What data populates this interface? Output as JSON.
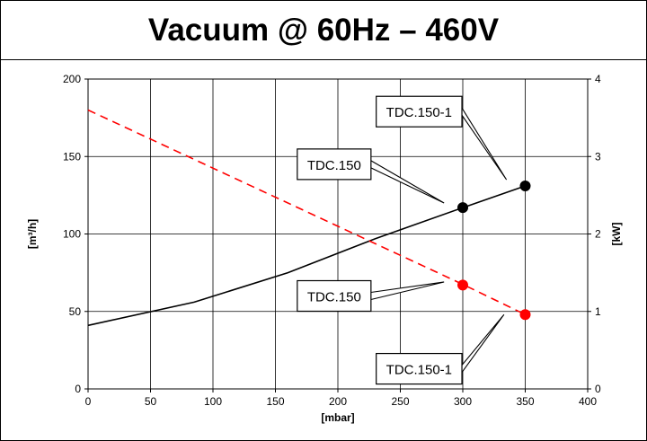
{
  "chart_data": {
    "type": "line",
    "title": "Vacuum @ 60Hz – 460V",
    "xlabel": "[mbar]",
    "ylabel_left": "[m³/h]",
    "ylabel_right": "[kW]",
    "xlim": [
      0,
      400
    ],
    "ylim_left": [
      0,
      200
    ],
    "ylim_right": [
      0,
      4
    ],
    "x_ticks": [
      "0",
      "50",
      "100",
      "150",
      "200",
      "250",
      "300",
      "350",
      "400"
    ],
    "y_left_ticks": [
      "0",
      "50",
      "100",
      "150",
      "200"
    ],
    "y_right_ticks": [
      "0",
      "1",
      "2",
      "3",
      "4"
    ],
    "grid": true,
    "series": [
      {
        "axis": "left",
        "color": "#000000",
        "style": "solid",
        "points": [
          [
            0,
            41
          ],
          [
            85,
            56
          ],
          [
            160,
            75
          ],
          [
            230,
            97
          ],
          [
            300,
            117
          ],
          [
            350,
            131
          ]
        ]
      },
      {
        "axis": "right",
        "color": "#ff0000",
        "style": "dashed",
        "points": [
          [
            0,
            3.6
          ],
          [
            300,
            1.35
          ],
          [
            350,
            0.96
          ]
        ]
      }
    ],
    "markers": [
      {
        "x": 300,
        "y": 117,
        "axis": "left",
        "color": "#000000"
      },
      {
        "x": 350,
        "y": 131,
        "axis": "left",
        "color": "#000000"
      },
      {
        "x": 300,
        "y": 67,
        "axis": "left",
        "color": "#ff0000"
      },
      {
        "x": 350,
        "y": 48,
        "axis": "left",
        "color": "#ff0000"
      }
    ],
    "callouts": [
      {
        "text": "TDC.150-1",
        "target_x": 335,
        "target_y": 135,
        "box_x": 265,
        "box_y": 179
      },
      {
        "text": "TDC.150",
        "target_x": 285,
        "target_y": 120,
        "box_x": 197,
        "box_y": 145
      },
      {
        "text": "TDC.150",
        "target_x": 285,
        "target_y": 69,
        "box_x": 197,
        "box_y": 60
      },
      {
        "text": "TDC.150-1",
        "target_x": 333,
        "target_y": 48,
        "box_x": 265,
        "box_y": 13
      }
    ]
  }
}
